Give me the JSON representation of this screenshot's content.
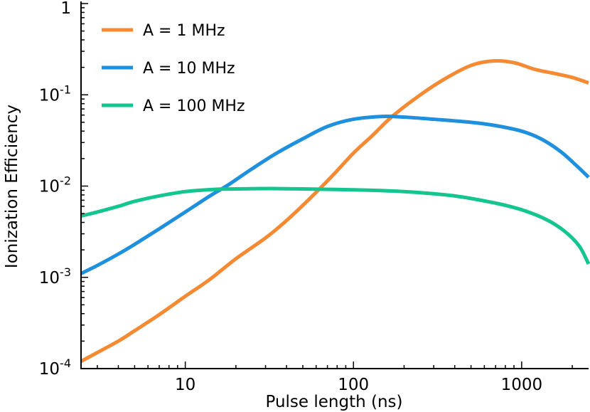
{
  "chart_data": {
    "type": "line",
    "xlabel": "Pulse length (ns)",
    "ylabel": "Ionization Efficiency",
    "x_scale": "log",
    "y_scale": "log",
    "xlim": [
      2.4,
      2500
    ],
    "ylim": [
      0.0001,
      1
    ],
    "grid": false,
    "legend_position": "top-left",
    "x_ticks": [
      {
        "value": 10,
        "label": "10"
      },
      {
        "value": 100,
        "label": "100"
      },
      {
        "value": 1000,
        "label": "1000"
      }
    ],
    "y_ticks": [
      {
        "value": 0.0001,
        "base": "10",
        "exp": "-4"
      },
      {
        "value": 0.001,
        "base": "10",
        "exp": "-3"
      },
      {
        "value": 0.01,
        "base": "10",
        "exp": "-2"
      },
      {
        "value": 0.1,
        "base": "10",
        "exp": "-1"
      },
      {
        "value": 1,
        "base": "",
        "exp": "",
        "plain": "1"
      }
    ],
    "series": [
      {
        "name": "A = 1 MHz",
        "color": "#f58a32",
        "x": [
          2.4,
          3,
          4,
          5,
          7,
          10,
          14,
          20,
          30,
          40,
          55,
          75,
          100,
          130,
          170,
          250,
          350,
          500,
          680,
          900,
          1200,
          1600,
          2000,
          2500
        ],
        "y": [
          0.00012,
          0.00015,
          0.0002,
          0.00026,
          0.00039,
          0.00062,
          0.00095,
          0.0016,
          0.0027,
          0.0042,
          0.0073,
          0.013,
          0.023,
          0.036,
          0.058,
          0.1,
          0.15,
          0.21,
          0.235,
          0.225,
          0.19,
          0.17,
          0.155,
          0.135
        ]
      },
      {
        "name": "A = 10 MHz",
        "color": "#1e90dd",
        "x": [
          2.4,
          3,
          4,
          5,
          7,
          10,
          14,
          18,
          25,
          35,
          50,
          70,
          100,
          150,
          200,
          300,
          500,
          700,
          1000,
          1300,
          1700,
          2100,
          2500
        ],
        "y": [
          0.0011,
          0.00135,
          0.0018,
          0.0023,
          0.0034,
          0.0052,
          0.0078,
          0.0103,
          0.0155,
          0.023,
          0.033,
          0.045,
          0.054,
          0.058,
          0.057,
          0.054,
          0.05,
          0.046,
          0.04,
          0.033,
          0.024,
          0.017,
          0.0125
        ]
      },
      {
        "name": "A = 100 MHz",
        "color": "#15c590",
        "x": [
          2.4,
          3,
          4,
          5,
          7,
          10,
          15,
          20,
          30,
          50,
          100,
          200,
          400,
          700,
          1000,
          1400,
          1800,
          2200,
          2500
        ],
        "y": [
          0.0047,
          0.0052,
          0.006,
          0.0068,
          0.0078,
          0.0087,
          0.0092,
          0.0093,
          0.0094,
          0.0093,
          0.0091,
          0.0087,
          0.0078,
          0.0065,
          0.0055,
          0.0043,
          0.0032,
          0.0022,
          0.0014
        ]
      }
    ]
  }
}
